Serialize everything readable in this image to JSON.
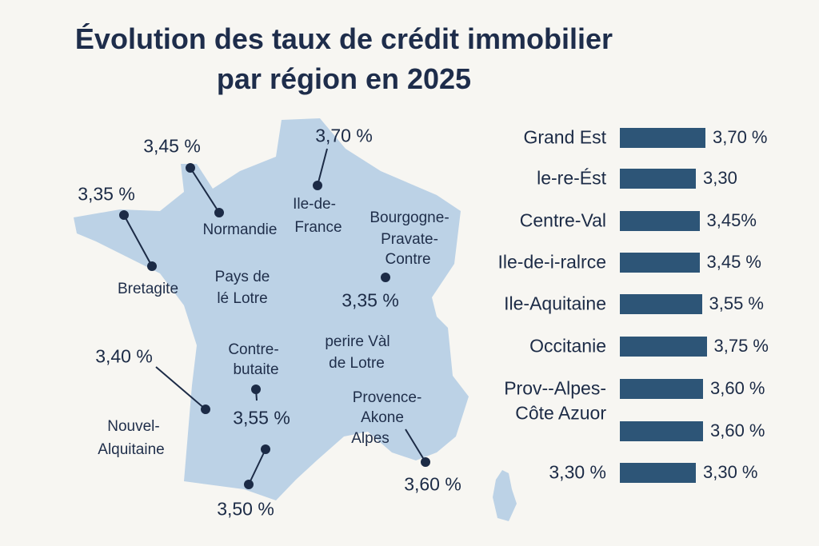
{
  "title_line1": "Évolution des taux de crédit immobilier",
  "title_line2": "par région en 2025",
  "colors": {
    "map_fill": "#bcd2e6",
    "bar": "#2d5577",
    "text": "#1c2b46",
    "background": "#f7f6f2"
  },
  "map": {
    "region_labels": [
      "Normandie",
      "Ile-de-",
      "France",
      "Bourgogne-",
      "Pravate-",
      "Contre",
      "Bretagite",
      "Pays de",
      "lé Lotre",
      "Contre-",
      "butaite",
      "perire Vàl",
      "de Lotre",
      "Provence-",
      "Akone",
      "Alpes",
      "Nouvel-",
      "Alquitaine"
    ],
    "value_labels": [
      "3,45 %",
      "3,70 %",
      "3,35 %",
      "3,35 %",
      "3,40 %",
      "3,55 %",
      "3,60 %",
      "3,50 %"
    ]
  },
  "chart_data": {
    "type": "bar",
    "orientation": "horizontal",
    "categories": [
      "Grand Est",
      "le-re-Ést",
      "Centre-Val",
      "Ile-de-i-ralrce",
      "Ile-Aquitaine",
      "Occitanie",
      "Prov--Alpes-",
      "Côte Azuor",
      "3,30 %"
    ],
    "values": [
      3.7,
      3.3,
      3.45,
      3.45,
      3.55,
      3.75,
      3.6,
      3.6,
      3.3
    ],
    "value_labels": [
      "3,70 %",
      "3,30",
      "3,45%",
      "3,45 %",
      "3,55 %",
      "3,75 %",
      "3,60 %",
      "3,60 %",
      "3,30 %"
    ],
    "grid": false,
    "axes_visible": false
  }
}
